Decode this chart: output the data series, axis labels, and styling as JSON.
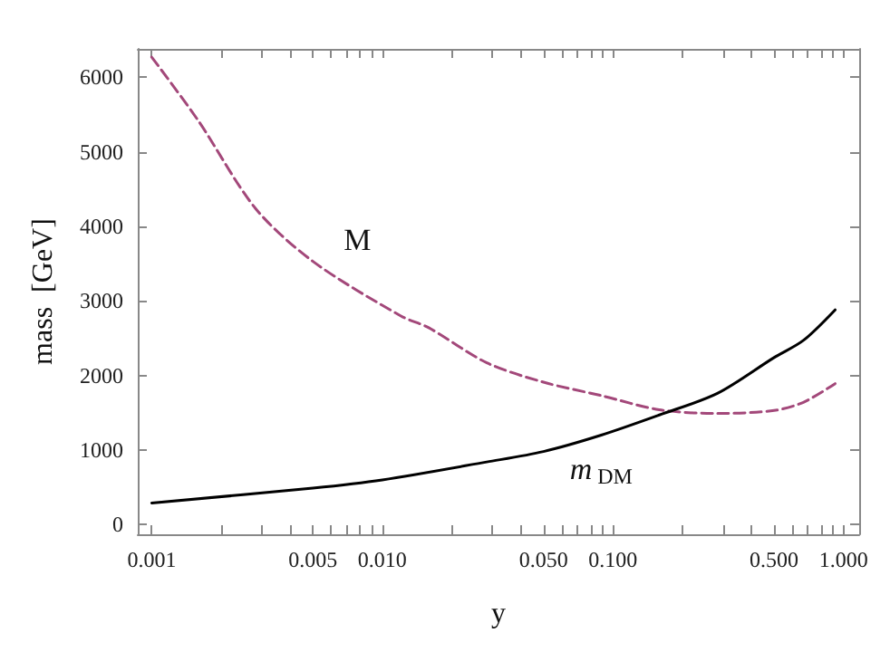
{
  "chart_data": {
    "type": "line",
    "xlabel": "y",
    "ylabel": "mass  [GeV]",
    "log": "x",
    "grid": false,
    "xlim": [
      0.00087,
      1.17
    ],
    "ylim": [
      -130,
      6380
    ],
    "xticks": [
      {
        "value": 0.001,
        "label": "0.001"
      },
      {
        "value": 0.002,
        "label": null
      },
      {
        "value": 0.003,
        "label": null
      },
      {
        "value": 0.004,
        "label": null
      },
      {
        "value": 0.005,
        "label": "0.005"
      },
      {
        "value": 0.006,
        "label": null
      },
      {
        "value": 0.007,
        "label": null
      },
      {
        "value": 0.008,
        "label": null
      },
      {
        "value": 0.009,
        "label": null
      },
      {
        "value": 0.01,
        "label": "0.010"
      },
      {
        "value": 0.02,
        "label": null
      },
      {
        "value": 0.03,
        "label": null
      },
      {
        "value": 0.04,
        "label": null
      },
      {
        "value": 0.05,
        "label": "0.050"
      },
      {
        "value": 0.06,
        "label": null
      },
      {
        "value": 0.07,
        "label": null
      },
      {
        "value": 0.08,
        "label": null
      },
      {
        "value": 0.09,
        "label": null
      },
      {
        "value": 0.1,
        "label": "0.100"
      },
      {
        "value": 0.2,
        "label": null
      },
      {
        "value": 0.3,
        "label": null
      },
      {
        "value": 0.4,
        "label": null
      },
      {
        "value": 0.5,
        "label": "0.500"
      },
      {
        "value": 0.6,
        "label": null
      },
      {
        "value": 0.7,
        "label": null
      },
      {
        "value": 0.8,
        "label": null
      },
      {
        "value": 0.9,
        "label": null
      },
      {
        "value": 1,
        "label": "1.000"
      }
    ],
    "yticks": [
      0,
      1000,
      2000,
      3000,
      4000,
      5000,
      6000
    ],
    "series": [
      {
        "name": "M",
        "color": "#a3487a",
        "line_style": "dashed",
        "x": [
          0.001,
          0.00159,
          0.00282,
          0.005,
          0.012,
          0.0159,
          0.0284,
          0.05,
          0.089,
          0.159,
          0.284,
          0.5,
          0.67,
          0.92
        ],
        "values": [
          6270,
          5420,
          4240,
          3530,
          2800,
          2640,
          2170,
          1910,
          1730,
          1540,
          1490,
          1530,
          1640,
          1890
        ]
      },
      {
        "name": "m$_{DM}$",
        "color": "#000000",
        "line_style": "solid",
        "x": [
          0.001,
          0.005,
          0.01,
          0.0284,
          0.05,
          0.089,
          0.159,
          0.284,
          0.5,
          0.67,
          0.92
        ],
        "values": [
          290,
          490,
          600,
          840,
          980,
          1200,
          1470,
          1760,
          2240,
          2470,
          2880
        ]
      }
    ]
  }
}
